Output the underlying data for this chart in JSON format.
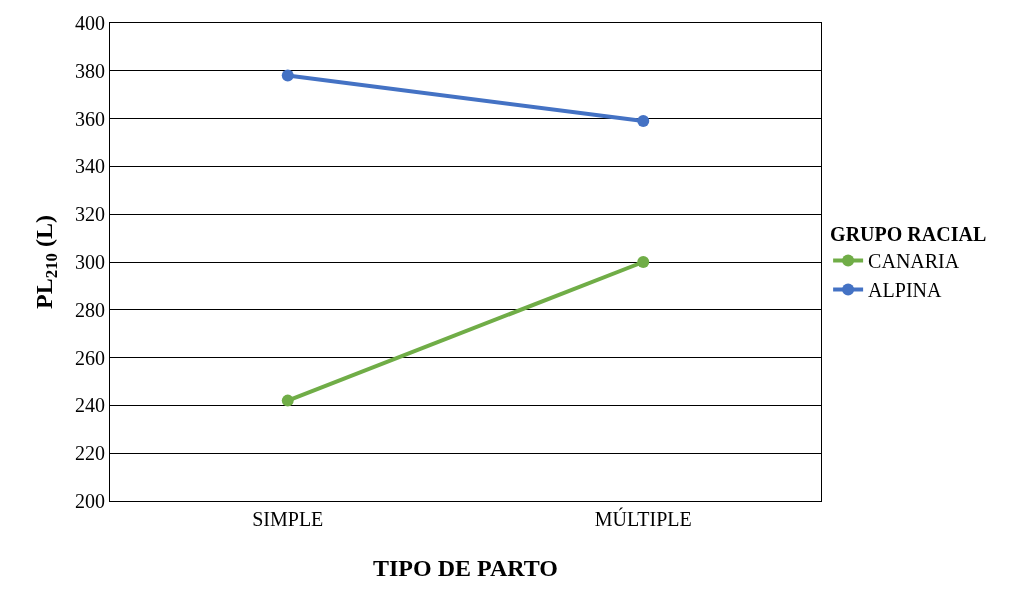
{
  "chart_data": {
    "type": "line",
    "xlabel": "TIPO DE PARTO",
    "ylabel": "PL$_{210}$ (L)",
    "legend_title": "GRUPO RACIAL",
    "categories": [
      "SIMPLE",
      "MÚLTIPLE"
    ],
    "series": [
      {
        "name": "CANARIA",
        "color": "#70ad47",
        "values": [
          242,
          300
        ]
      },
      {
        "name": "ALPINA",
        "color": "#4472c4",
        "values": [
          378,
          359
        ]
      }
    ],
    "ylim": [
      200,
      400
    ],
    "yticks": [
      200,
      220,
      240,
      260,
      280,
      300,
      320,
      340,
      360,
      380,
      400
    ],
    "grid": "y",
    "legend": "right",
    "marker": "circle",
    "line_style": "solid"
  }
}
